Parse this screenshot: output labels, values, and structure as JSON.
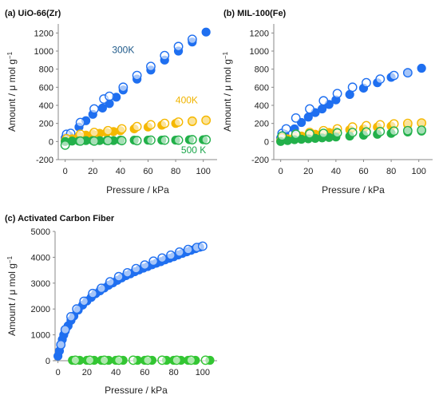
{
  "chart_data": [
    {
      "type": "scatter",
      "panel_label": "(a) UiO-66(Zr)",
      "xlabel": "Pressure / kPa",
      "ylabel": "Amount / μ mol g⁻¹",
      "xlim": [
        -5,
        110
      ],
      "ylim": [
        -200,
        1300
      ],
      "xticks": [
        0,
        20,
        40,
        60,
        80,
        100
      ],
      "yticks": [
        -200,
        0,
        200,
        400,
        600,
        800,
        1000,
        1200
      ],
      "grid": false,
      "annotations": [
        {
          "text": "300K",
          "x": 42,
          "y": 980,
          "color": "#1f5a8a"
        },
        {
          "text": "400K",
          "x": 88,
          "y": 420,
          "color": "#f0b400"
        },
        {
          "text": "500 K",
          "x": 93,
          "y": -130,
          "color": "#1aa64a"
        }
      ],
      "series": [
        {
          "color": "#1f6ff0",
          "filled": true,
          "x": [
            0,
            3,
            10,
            15,
            20,
            27,
            32,
            37,
            42,
            52,
            62,
            72,
            82,
            92,
            102
          ],
          "y": [
            40,
            60,
            160,
            230,
            300,
            370,
            420,
            490,
            570,
            690,
            790,
            900,
            1000,
            1100,
            1210
          ]
        },
        {
          "color": "#1f6ff0",
          "filled": false,
          "x": [
            1,
            4,
            11,
            21,
            28,
            32,
            42,
            52,
            62,
            72,
            82,
            92
          ],
          "y": [
            80,
            90,
            210,
            360,
            470,
            500,
            600,
            730,
            830,
            950,
            1050,
            1130
          ]
        },
        {
          "color": "#f5b800",
          "filled": true,
          "x": [
            0,
            5,
            10,
            15,
            20,
            25,
            30,
            35,
            40,
            50,
            60,
            70,
            80,
            92,
            102
          ],
          "y": [
            10,
            30,
            60,
            70,
            80,
            90,
            100,
            110,
            120,
            140,
            160,
            180,
            200,
            220,
            235
          ]
        },
        {
          "color": "#f5b800",
          "filled": false,
          "x": [
            1,
            11,
            21,
            31,
            41,
            52,
            62,
            72,
            82,
            92,
            102
          ],
          "y": [
            30,
            80,
            100,
            120,
            140,
            165,
            185,
            200,
            215,
            225,
            235
          ]
        },
        {
          "color": "#22b04a",
          "filled": true,
          "x": [
            0,
            5,
            10,
            15,
            20,
            25,
            30,
            35,
            40,
            50,
            60,
            70,
            80,
            90,
            100
          ],
          "y": [
            0,
            5,
            5,
            10,
            10,
            10,
            10,
            10,
            15,
            15,
            15,
            15,
            15,
            20,
            20
          ]
        },
        {
          "color": "#22b04a",
          "filled": false,
          "x": [
            0,
            11,
            21,
            31,
            41,
            52,
            62,
            72,
            82,
            92,
            102
          ],
          "y": [
            -40,
            5,
            5,
            10,
            10,
            10,
            15,
            15,
            15,
            20,
            20
          ]
        }
      ]
    },
    {
      "type": "scatter",
      "panel_label": "(b) MIL-100(Fe)",
      "xlabel": "Pressure / kPa",
      "ylabel": "Amount / μ mol g⁻¹",
      "xlim": [
        -5,
        110
      ],
      "ylim": [
        -200,
        1300
      ],
      "xticks": [
        0,
        20,
        40,
        60,
        80,
        100
      ],
      "yticks": [
        -200,
        0,
        200,
        400,
        600,
        800,
        1000,
        1200
      ],
      "grid": false,
      "annotations": [],
      "series": [
        {
          "color": "#1f6ff0",
          "filled": true,
          "x": [
            0,
            3,
            10,
            15,
            20,
            25,
            30,
            35,
            40,
            50,
            60,
            70,
            80,
            92,
            102
          ],
          "y": [
            40,
            80,
            140,
            210,
            270,
            320,
            360,
            410,
            460,
            520,
            590,
            650,
            710,
            760,
            810
          ]
        },
        {
          "color": "#1f6ff0",
          "filled": false,
          "x": [
            1,
            4,
            11,
            21,
            31,
            41,
            52,
            62,
            72,
            82,
            92
          ],
          "y": [
            90,
            140,
            260,
            360,
            450,
            530,
            600,
            650,
            690,
            730,
            760
          ]
        },
        {
          "color": "#f5b800",
          "filled": true,
          "x": [
            0,
            5,
            10,
            15,
            20,
            25,
            30,
            35,
            40,
            50,
            60,
            70,
            80,
            92,
            102
          ],
          "y": [
            10,
            30,
            50,
            60,
            70,
            80,
            90,
            100,
            110,
            130,
            140,
            160,
            170,
            185,
            200
          ]
        },
        {
          "color": "#f5b800",
          "filled": false,
          "x": [
            1,
            11,
            21,
            31,
            41,
            52,
            62,
            72,
            82,
            92,
            102
          ],
          "y": [
            40,
            80,
            100,
            120,
            140,
            160,
            175,
            185,
            195,
            200,
            205
          ]
        },
        {
          "color": "#22b04a",
          "filled": true,
          "x": [
            0,
            5,
            10,
            15,
            20,
            25,
            30,
            35,
            40,
            50,
            60,
            70,
            80,
            92,
            102
          ],
          "y": [
            0,
            10,
            20,
            25,
            30,
            35,
            40,
            45,
            50,
            60,
            70,
            80,
            90,
            105,
            115
          ]
        },
        {
          "color": "#22b04a",
          "filled": false,
          "x": [
            1,
            11,
            21,
            31,
            41,
            52,
            62,
            72,
            82,
            92,
            102
          ],
          "y": [
            60,
            80,
            85,
            90,
            95,
            100,
            105,
            110,
            115,
            120,
            125
          ]
        }
      ]
    },
    {
      "type": "scatter",
      "panel_label": "(c) Activated Carbon Fiber",
      "xlabel": "Pressure / kPa",
      "ylabel": "Amount / μ mol g⁻¹",
      "xlim": [
        -2,
        110
      ],
      "ylim": [
        0,
        5000
      ],
      "xticks": [
        0,
        20,
        40,
        60,
        80,
        100
      ],
      "yticks": [
        0,
        1000,
        2000,
        3000,
        4000,
        5000
      ],
      "grid": false,
      "annotations": [],
      "series": [
        {
          "color": "#1f6ff0",
          "filled": true,
          "x": [
            0,
            1,
            2,
            3,
            4,
            5,
            7,
            9,
            11,
            14,
            17,
            20,
            23,
            26,
            29,
            32,
            35,
            38,
            41,
            44,
            47,
            50,
            53,
            56,
            59,
            62,
            65,
            68,
            71,
            74,
            77,
            80,
            83,
            86,
            89,
            92,
            95,
            98
          ],
          "y": [
            180,
            380,
            600,
            820,
            1000,
            1150,
            1350,
            1560,
            1730,
            1960,
            2150,
            2310,
            2450,
            2590,
            2700,
            2810,
            2920,
            3010,
            3110,
            3200,
            3290,
            3360,
            3440,
            3510,
            3580,
            3640,
            3710,
            3770,
            3830,
            3900,
            3960,
            4020,
            4090,
            4150,
            4210,
            4270,
            4330,
            4390
          ]
        },
        {
          "color": "#1f6ff0",
          "filled": false,
          "x": [
            2,
            5,
            9,
            13,
            18,
            24,
            30,
            36,
            42,
            48,
            54,
            60,
            66,
            72,
            78,
            84,
            90,
            96,
            100
          ],
          "y": [
            620,
            1200,
            1700,
            2000,
            2300,
            2600,
            2800,
            3050,
            3250,
            3400,
            3560,
            3700,
            3850,
            3970,
            4080,
            4200,
            4300,
            4380,
            4430
          ]
        },
        {
          "color": "#33c633",
          "filled": true,
          "x": [
            10,
            15,
            20,
            25,
            30,
            35,
            40,
            45,
            55,
            60,
            65,
            75,
            80,
            85,
            90,
            95,
            105
          ],
          "y": [
            15,
            15,
            15,
            15,
            15,
            15,
            15,
            15,
            15,
            15,
            15,
            15,
            15,
            15,
            15,
            15,
            15
          ]
        },
        {
          "color": "#33c633",
          "filled": false,
          "x": [
            12,
            22,
            32,
            42,
            52,
            62,
            72,
            82,
            92,
            102
          ],
          "y": [
            20,
            20,
            20,
            20,
            20,
            20,
            20,
            20,
            20,
            20
          ]
        }
      ]
    }
  ]
}
